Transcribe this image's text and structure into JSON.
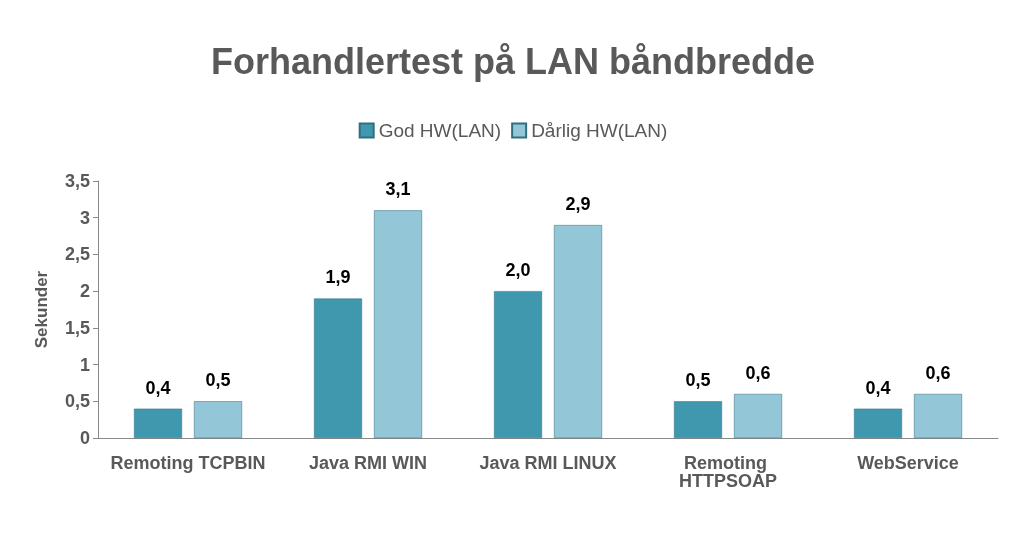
{
  "chart_data": {
    "type": "bar",
    "title": "Forhandlertest på LAN båndbredde",
    "ylabel": "Sekunder",
    "categories": [
      "Remoting TCPBIN",
      "Java RMI WIN",
      "Java RMI LINUX",
      "Remoting HTTPSOAP",
      "WebService"
    ],
    "series": [
      {
        "name": "God HW(LAN)",
        "color": "#3f98ae",
        "values": [
          0.4,
          1.9,
          2.0,
          0.5,
          0.4
        ],
        "value_labels": [
          "0,4",
          "1,9",
          "2,0",
          "0,5",
          "0,4"
        ]
      },
      {
        "name": "Dårlig HW(LAN)",
        "color": "#93c6d6",
        "values": [
          0.5,
          3.1,
          2.9,
          0.6,
          0.6
        ],
        "value_labels": [
          "0,5",
          "3,1",
          "2,9",
          "0,6",
          "0,6"
        ]
      }
    ],
    "ylim": [
      0,
      3.5
    ],
    "yticks": [
      0,
      {
        "value": 0.5,
        "label": "0,5"
      },
      1,
      {
        "value": 1.5,
        "label": "1,5"
      },
      2,
      {
        "value": 2.5,
        "label": "2,5"
      },
      3,
      {
        "value": 3.5,
        "label": "3,5"
      }
    ],
    "grid": false,
    "legend": "top"
  }
}
